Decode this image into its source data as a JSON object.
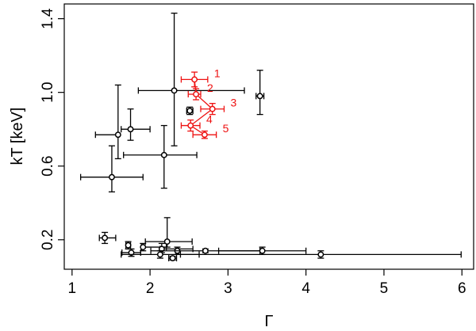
{
  "chart_data": {
    "type": "scatter",
    "title": "",
    "xlabel": "Γ",
    "ylabel": "kT [keV]",
    "xlim": [
      0.9,
      6.15
    ],
    "ylim": [
      0.04,
      1.48
    ],
    "xticks": [
      1,
      2,
      3,
      4,
      5,
      6
    ],
    "yticks": [
      0.2,
      0.6,
      1.0,
      1.4
    ],
    "xtick_labels": [
      "1",
      "2",
      "3",
      "4",
      "5",
      "6"
    ],
    "ytick_labels": [
      "0.2",
      "0.6",
      "1.0",
      "1.4"
    ],
    "grid": false,
    "series": [
      {
        "color": "#000000",
        "points": [
          {
            "x": 2.31,
            "y": 1.01,
            "xerr": [
              0.46,
              0.9
            ],
            "yerr": [
              0.3,
              0.42
            ]
          },
          {
            "x": 3.41,
            "y": 0.98,
            "xerr": [
              0.05,
              0.05
            ],
            "yerr": [
              0.1,
              0.14
            ]
          },
          {
            "x": 2.51,
            "y": 0.9,
            "xerr": [
              0.04,
              0.04
            ],
            "yerr": [
              0.02,
              0.02
            ]
          },
          {
            "x": 1.75,
            "y": 0.8,
            "xerr": [
              0.12,
              0.25
            ],
            "yerr": [
              0.06,
              0.11
            ]
          },
          {
            "x": 1.59,
            "y": 0.77,
            "xerr": [
              0.29,
              0.0
            ],
            "yerr": [
              0.13,
              0.27
            ]
          },
          {
            "x": 2.18,
            "y": 0.66,
            "xerr": [
              0.52,
              0.42
            ],
            "yerr": [
              0.18,
              0.16
            ]
          },
          {
            "x": 1.51,
            "y": 0.54,
            "xerr": [
              0.4,
              0.4
            ],
            "yerr": [
              0.08,
              0.17
            ]
          },
          {
            "x": 1.42,
            "y": 0.21,
            "xerr": [
              0.07,
              0.14
            ],
            "yerr": [
              0.03,
              0.03
            ]
          },
          {
            "x": 2.22,
            "y": 0.19,
            "xerr": [
              0.28,
              0.32
            ],
            "yerr": [
              0.03,
              0.13
            ]
          },
          {
            "x": 1.72,
            "y": 0.17,
            "xerr": [
              0.03,
              0.03
            ],
            "yerr": [
              0.02,
              0.02
            ]
          },
          {
            "x": 1.91,
            "y": 0.16,
            "xerr": [
              0.02,
              0.3
            ],
            "yerr": [
              0.02,
              0.02
            ]
          },
          {
            "x": 2.15,
            "y": 0.15,
            "xerr": [
              0.02,
              0.4
            ],
            "yerr": [
              0.02,
              0.03
            ]
          },
          {
            "x": 2.35,
            "y": 0.14,
            "xerr": [
              0.02,
              0.02
            ],
            "yerr": [
              0.02,
              0.02
            ]
          },
          {
            "x": 2.71,
            "y": 0.14,
            "xerr": [
              0.7,
              0.7
            ],
            "yerr": [
              0.01,
              0.01
            ]
          },
          {
            "x": 3.44,
            "y": 0.14,
            "xerr": [
              0.56,
              0.56
            ],
            "yerr": [
              0.02,
              0.02
            ]
          },
          {
            "x": 1.76,
            "y": 0.13,
            "xerr": [
              0.12,
              0.12
            ],
            "yerr": [
              0.02,
              0.02
            ]
          },
          {
            "x": 2.13,
            "y": 0.12,
            "xerr": [
              0.5,
              0.5
            ],
            "yerr": [
              0.02,
              0.02
            ]
          },
          {
            "x": 4.19,
            "y": 0.12,
            "xerr": [
              1.8,
              1.8
            ],
            "yerr": [
              0.02,
              0.02
            ]
          },
          {
            "x": 2.29,
            "y": 0.1,
            "xerr": [
              0.05,
              0.05
            ],
            "yerr": [
              0.01,
              0.01
            ]
          }
        ]
      },
      {
        "color": "#ee1111",
        "connected": true,
        "points": [
          {
            "x": 2.57,
            "y": 1.07,
            "xerr": [
              0.17,
              0.17
            ],
            "yerr": [
              0.04,
              0.04
            ],
            "label": "1"
          },
          {
            "x": 2.59,
            "y": 0.99,
            "xerr": [
              0.1,
              0.06
            ],
            "yerr": [
              0.03,
              0.03
            ],
            "label": "2"
          },
          {
            "x": 2.8,
            "y": 0.91,
            "xerr": [
              0.15,
              0.15
            ],
            "yerr": [
              0.03,
              0.03
            ],
            "label": "3"
          },
          {
            "x": 2.52,
            "y": 0.82,
            "xerr": [
              0.12,
              0.12
            ],
            "yerr": [
              0.03,
              0.03
            ],
            "label": "4"
          },
          {
            "x": 2.7,
            "y": 0.77,
            "xerr": [
              0.15,
              0.15
            ],
            "yerr": [
              0.02,
              0.02
            ],
            "label": "5"
          }
        ]
      }
    ]
  }
}
